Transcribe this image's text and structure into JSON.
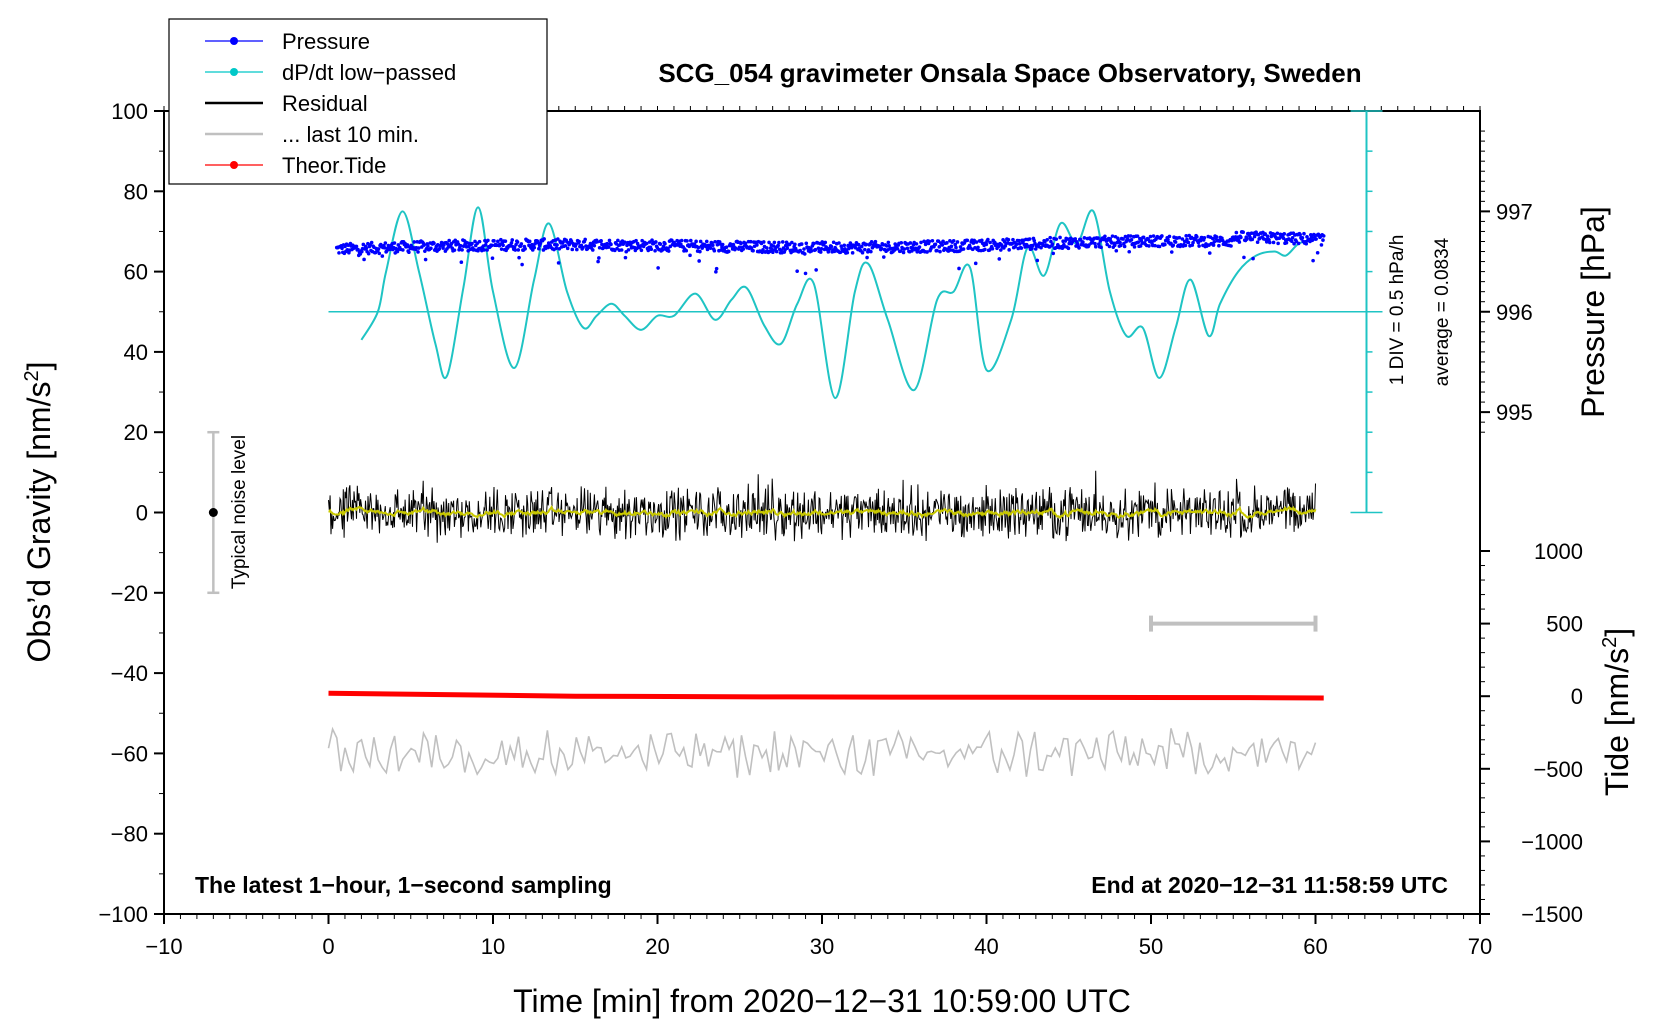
{
  "chart_data": {
    "type": "line",
    "title": "SCG_054 gravimeter Onsala Space Observatory, Sweden",
    "xlabel": "Time [min] from 2020−12−31 10:59:00 UTC",
    "ylabel": "Obs’d Gravity [nm/s",
    "ylabel_sup": "2",
    "ylabel_close": "]",
    "xlim": [
      -10,
      70
    ],
    "ylim": [
      -100,
      100
    ],
    "xticks": [
      -10,
      0,
      10,
      20,
      30,
      40,
      50,
      60,
      70
    ],
    "xtick_labels": [
      "−10",
      "0",
      "10",
      "20",
      "30",
      "40",
      "50",
      "60",
      "70"
    ],
    "yticks": [
      100,
      80,
      60,
      40,
      20,
      0,
      -20,
      -40,
      -60,
      -80,
      -100
    ],
    "ytick_labels": [
      "100",
      "80",
      "60",
      "40",
      "20",
      "0",
      "−20",
      "−40",
      "−60",
      "−80",
      "−100"
    ],
    "pressure_axis": {
      "label": "Pressure [hPa]",
      "ticks": [
        995,
        996,
        997
      ],
      "tick_labels": [
        "995",
        "996",
        "997"
      ],
      "gravity_per_hpa": 25,
      "offset_gravity": 50,
      "offset_hpa": 996
    },
    "tide_axis": {
      "label": "Tide [nm/s",
      "label_sup": "2",
      "label_close": "]",
      "ticks": [
        1000,
        500,
        0,
        -500,
        -1000,
        -1500
      ],
      "tick_labels": [
        "1000",
        "500",
        "0",
        "−500",
        "−1000",
        "−1500"
      ],
      "range": [
        -1500,
        1000
      ]
    },
    "dpdt_scale": {
      "label1": "1 DIV = 0.5 hPa/h",
      "label2": "average = 0.0834",
      "x": 63.1,
      "y_base": 0,
      "y_top": 100,
      "div_gravity": 10,
      "average_gravity": 50
    },
    "noise_bar": {
      "label": "Typical noise level",
      "x": -7,
      "center": 0,
      "half_range": 20
    },
    "last10_bar": {
      "x_start": 50,
      "x_end": 60,
      "tide": 500
    },
    "annotation_left": "The latest 1−hour, 1−second sampling",
    "annotation_right": "End at 2020−12−31 11:58:59 UTC",
    "legend": [
      {
        "name": "Pressure",
        "color": "#0000ff",
        "marker": true
      },
      {
        "name": "dP/dt low−passed",
        "color": "#00c8c8",
        "marker": true
      },
      {
        "name": "Residual",
        "color": "#000000",
        "marker": false
      },
      {
        "name": "... last 10 min.",
        "color": "#c0c0c0",
        "marker": false
      },
      {
        "name": "Theor.Tide",
        "color": "#ff0000",
        "marker": true
      }
    ],
    "series": [
      {
        "name": "dP/dt low−passed",
        "color": "#1fc4c4",
        "x": [
          2,
          3,
          3.5,
          4.5,
          5.5,
          6.5,
          7.2,
          8.2,
          9.1,
          10,
          11.3,
          12.5,
          13.4,
          14.5,
          15.5,
          16.3,
          17.2,
          18,
          19,
          20,
          21,
          22.3,
          23.5,
          24.5,
          25.4,
          26.5,
          27.5,
          28.5,
          29.5,
          30.8,
          32,
          32.8,
          34,
          35.6,
          37,
          38,
          39,
          40,
          41.5,
          42.5,
          43.5,
          44.5,
          45.5,
          46.5,
          47.5,
          48.5,
          49.5,
          50.5,
          51.5,
          52.4,
          53.5,
          54.2,
          55.3,
          56.4,
          57.5,
          58.2,
          59,
          60
        ],
        "y": [
          43,
          50,
          60,
          75,
          60,
          42,
          34,
          56,
          76,
          55,
          36,
          58,
          72,
          55,
          46,
          49,
          52,
          49,
          45.5,
          49,
          49,
          54.5,
          48,
          53,
          56,
          46.5,
          42,
          52,
          57,
          28.5,
          55,
          62,
          48,
          30.5,
          53,
          55,
          61,
          35.5,
          48,
          66,
          59,
          72,
          67,
          75,
          55,
          44,
          46,
          33.5,
          46,
          58,
          44,
          52,
          60,
          64,
          65,
          64,
          67,
          68
        ]
      },
      {
        "name": "Pressure",
        "color": "#0000ff",
        "x_start": 0.5,
        "x_end": 60.5,
        "y_mean": 66.3
      },
      {
        "name": "Residual",
        "color": "#000000",
        "x_start": 0,
        "x_end": 60,
        "y_mean": 0
      },
      {
        "name": "Residual smoothed",
        "color": "#c8c800",
        "x_start": 0,
        "x_end": 60,
        "y_mean": 0
      },
      {
        "name": "... last 10 min.",
        "color": "#c0c0c0",
        "x_start": 0,
        "x_end": 60,
        "y_mean": -60
      },
      {
        "name": "Theor.Tide",
        "color": "#ff0000",
        "x": [
          0,
          15,
          28,
          56,
          60.5
        ],
        "tide": [
          20,
          0,
          -5,
          -10,
          -12
        ]
      }
    ]
  }
}
